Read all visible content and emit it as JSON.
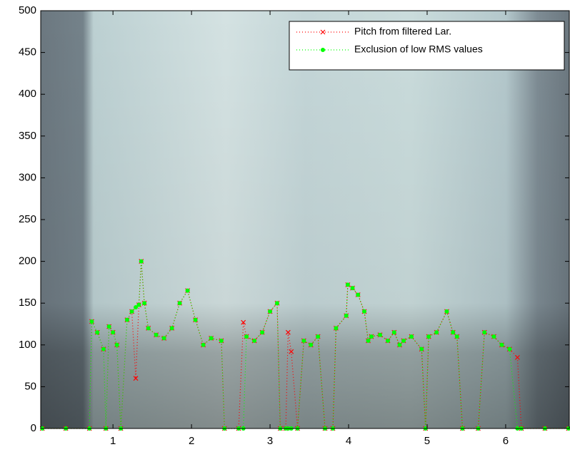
{
  "chart_data": {
    "type": "line",
    "x": [
      0.1,
      0.4,
      0.7,
      0.73,
      0.8,
      0.88,
      0.91,
      0.95,
      1.0,
      1.05,
      1.1,
      1.18,
      1.24,
      1.29,
      1.33,
      1.36,
      1.4,
      1.45,
      1.55,
      1.65,
      1.75,
      1.85,
      1.95,
      2.05,
      2.15,
      2.25,
      2.38,
      2.42,
      2.6,
      2.66,
      2.7,
      2.8,
      2.9,
      3.0,
      3.09,
      3.13,
      3.2,
      3.23,
      3.27,
      3.35,
      3.43,
      3.52,
      3.61,
      3.7,
      3.8,
      3.84,
      3.97,
      3.99,
      4.05,
      4.12,
      4.2,
      4.25,
      4.29,
      4.4,
      4.5,
      4.58,
      4.65,
      4.7,
      4.8,
      4.93,
      4.98,
      5.02,
      5.12,
      5.25,
      5.33,
      5.38,
      5.45,
      5.65,
      5.73,
      5.85,
      5.95,
      6.05,
      6.15,
      6.2,
      6.5,
      6.8
    ],
    "series": [
      {
        "name": "Pitch from filtered Lar.",
        "color": "#ff0000",
        "marker": "x",
        "values": [
          0,
          0,
          0,
          128,
          115,
          95,
          0,
          122,
          115,
          100,
          0,
          130,
          140,
          60,
          148,
          200,
          150,
          120,
          112,
          108,
          120,
          150,
          165,
          130,
          100,
          108,
          105,
          0,
          0,
          127,
          110,
          105,
          115,
          140,
          150,
          0,
          0,
          115,
          92,
          0,
          105,
          100,
          110,
          0,
          0,
          120,
          135,
          172,
          168,
          160,
          140,
          105,
          110,
          112,
          105,
          115,
          100,
          105,
          110,
          95,
          0,
          110,
          115,
          140,
          115,
          110,
          0,
          0,
          115,
          110,
          100,
          95,
          85,
          0,
          0,
          0
        ]
      },
      {
        "name": "Exclusion of low RMS values",
        "color": "#00ff00",
        "marker": "dot",
        "values": [
          0,
          0,
          0,
          128,
          115,
          95,
          0,
          122,
          115,
          100,
          0,
          130,
          140,
          145,
          148,
          200,
          150,
          120,
          112,
          108,
          120,
          150,
          165,
          130,
          100,
          108,
          105,
          0,
          0,
          0,
          110,
          105,
          115,
          140,
          150,
          0,
          0,
          0,
          0,
          0,
          105,
          100,
          110,
          0,
          0,
          120,
          135,
          172,
          168,
          160,
          140,
          105,
          110,
          112,
          105,
          115,
          100,
          105,
          110,
          95,
          0,
          110,
          115,
          140,
          115,
          110,
          0,
          0,
          115,
          110,
          100,
          95,
          0,
          0,
          0,
          0
        ]
      }
    ],
    "xlim": [
      0.08,
      6.81
    ],
    "xticks": [
      1,
      2,
      3,
      4,
      5,
      6
    ],
    "ylim": [
      0,
      500
    ],
    "yticks": [
      0,
      50,
      100,
      150,
      200,
      250,
      300,
      350,
      400,
      450,
      500
    ],
    "legend": "top-right"
  }
}
